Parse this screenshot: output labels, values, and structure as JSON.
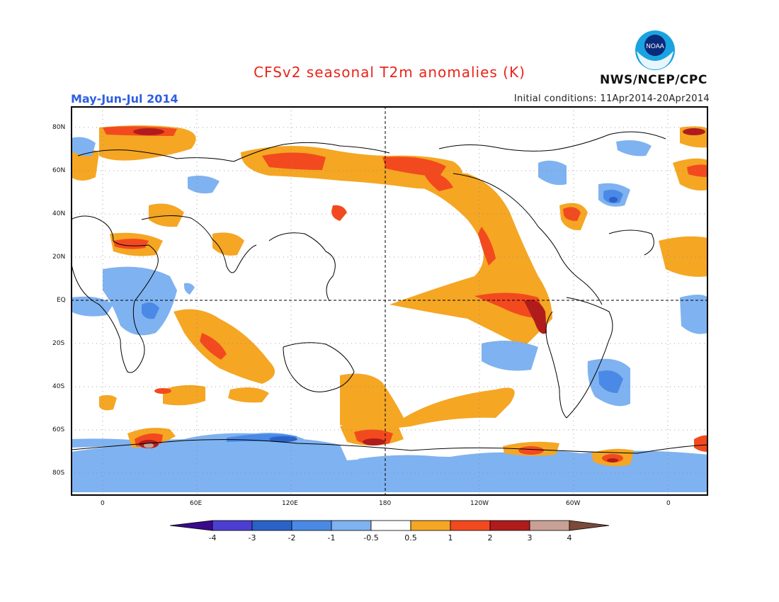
{
  "header": {
    "title": "CFSv2 seasonal T2m anomalies (K)",
    "season": "May-Jun-Jul 2014",
    "initial_conditions": "Initial conditions: 11Apr2014-20Apr2014",
    "agency": "NWS/NCEP/CPC",
    "logo_text": "NOAA"
  },
  "colors": {
    "title": "#e8251b",
    "season": "#2f5fe0",
    "pos_0_5_1": "#f5a623",
    "pos_1_2": "#f24a1e",
    "pos_2_3": "#b01c1c",
    "pos_3_4": "#c8a096",
    "neg_0_5_1": "#7fb2f0",
    "neg_1_2": "#4a8ae6",
    "neg_2_3": "#2a62c8",
    "neg_3_4": "#4b3ed0"
  },
  "map": {
    "lat_labels": [
      "80N",
      "60N",
      "40N",
      "20N",
      "EQ",
      "20S",
      "40S",
      "60S",
      "80S"
    ],
    "lon_labels": [
      "0",
      "60E",
      "120E",
      "180",
      "120W",
      "60W",
      "0"
    ]
  },
  "colorbar": {
    "ticks": [
      "-4",
      "-3",
      "-2",
      "-1",
      "-0.5",
      "0.5",
      "1",
      "2",
      "3",
      "4"
    ],
    "colors": [
      "#3a0a8c",
      "#4b3ed0",
      "#2a62c8",
      "#4a8ae6",
      "#7fb2f0",
      "#ffffff",
      "#f5a623",
      "#f24a1e",
      "#b01c1c",
      "#c8a096",
      "#7a4a3a"
    ]
  }
}
